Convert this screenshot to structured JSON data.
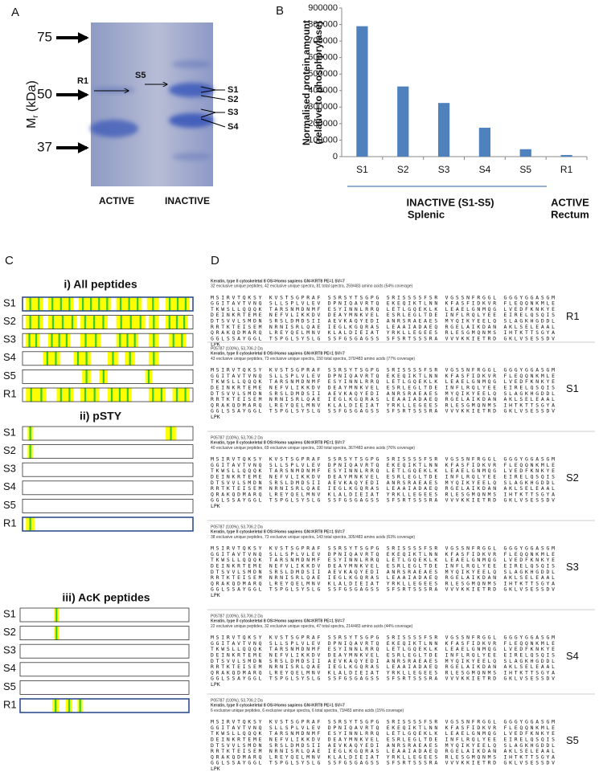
{
  "panel_a": {
    "letter": "A",
    "markers": [
      "75",
      "50",
      "37"
    ],
    "axis_label": "M",
    "axis_label_sub": "r",
    "axis_label_unit": "(kDa)",
    "band_labels": [
      "R1",
      "S5",
      "S1",
      "S2",
      "S3",
      "S4"
    ],
    "lanes": [
      "ACTIVE",
      "INACTIVE"
    ]
  },
  "chart_data": {
    "type": "bar",
    "letter": "B",
    "ylabel_lines": [
      "Normalised protein amount",
      "(relative to phosphprylase)"
    ],
    "categories": [
      "S1",
      "S2",
      "S3",
      "S4",
      "S5",
      "R1"
    ],
    "values": [
      790000,
      425000,
      325000,
      175000,
      45000,
      10000
    ],
    "color": "#4f81bd",
    "ylim": [
      0,
      900000
    ],
    "yticks": [
      0,
      100000,
      200000,
      300000,
      400000,
      500000,
      600000,
      700000,
      800000,
      900000
    ],
    "groups": [
      {
        "label": "INACTIVE (S1-S5)",
        "sublabel": "Splenic"
      },
      {
        "label": "ACTIVE",
        "sublabel": "Rectum"
      }
    ]
  },
  "panel_c": {
    "letter": "C",
    "rows": [
      "S1",
      "S2",
      "S3",
      "S4",
      "S5",
      "R1"
    ],
    "sections": [
      "i) All peptides",
      "ii) pSTY",
      "iii) AcK peptides"
    ]
  },
  "panel_d": {
    "letter": "D",
    "sequence": [
      "MSIRVTQKSY KVSTSGPRAF SSRSYTSGPG SRISSSSFSR VGSSNFRGGL GGGYGGASGM",
      "GGITAVTVNQ SLLSPLVLEV DPNIQAVRTQ EKEQIKTLNN KFASFIDKVR FLEQQNKMLE",
      "TKWSLLQQQK TARSNMDNMF ESYINNLRRQ LETLGQEKLK LEAELGNMQG LVEDFKNKYE",
      "DEINKRTEME NEFVLIKKDV DEAYMNKVEL ESRLEGLTDE INFLRQLYEE EIRELQSQIS",
      "DTSVVLSMDN SRSLDMDSII AEVKAQYEDI ANRSRAEAES MYQIKYEELQ SLAGKHGDDL",
      "RRTKTEISEM NRNISRLQAE IEGLKGQRAS LEAAIADAEQ RGELAIKDAN AKLSELEAAL",
      "QRAKQDMARQ LREYQELMNV KLALDIEIAT YRKLLEGEES RLESGMQNMS IHTKTTSGYA",
      "GGLSSAYGGL TSPGLSYSLG SSFGSGAGSS SFSRTSSSRA VVVKKIETRD GKLVSESSDV",
      "LPK"
    ],
    "blocks": [
      {
        "label": "R1",
        "lines": [
          "Keratin, type II cytoskeletal 8 OS=Homo sapiens GN=KRT8 PE=1 SV=7",
          "32 exclusive unique peptides, 42 exclusive unique spectra, 81 total spectra, 259/483 amino acids (54% coverage)"
        ]
      },
      {
        "label": "S1",
        "lines": [
          "P05787 (100%), 53,706.2 Da",
          "Keratin, type II cytoskeletal 8 OS=Homo sapiens GN=KRT8 PE=1 SV=7",
          "43 exclusive unique peptides, 73 exclusive unique spectra, 150 total spectra, 370/483 amino acids (77% coverage)"
        ]
      },
      {
        "label": "S2",
        "lines": [
          "P05787 (100%), 53,706.2 Da",
          "Keratin, type II cytoskeletal 8 OS=Homo sapiens GN=KRT8 PE=1 SV=7",
          "40 exclusive unique peptides, 69 exclusive unique spectra, 190 total spectra, 367/483 amino acids (76% coverage)"
        ]
      },
      {
        "label": "S3",
        "lines": [
          "P05787 (100%), 53,706.2 Da",
          "Keratin, type II cytoskeletal 8 OS=Homo sapiens GN=KRT8 PE=1 SV=7",
          "38 exclusive unique peptides, 73 exclusive unique spectra, 143 total spectra, 305/483 amino acids (63% coverage)"
        ]
      },
      {
        "label": "S4",
        "lines": [
          "P05787 (100%), 53,706.2 Da",
          "Keratin, type II cytoskeletal 8 OS=Homo sapiens GN=KRT8 PE=1 SV=7",
          "22 exclusive unique peptides, 32 exclusive unique spectra, 47 total spectra, 214/483 amino acids (44% coverage)"
        ]
      },
      {
        "label": "S5",
        "lines": [
          "P05787 (100%), 53,706.2 Da",
          "Keratin, type II cytoskeletal 8 OS=Homo sapiens GN=KRT8 PE=1 SV=7",
          "6 exclusive unique peptides, 6 exclusive unique spectra, 6 total spectra, 73/483 amino acids (15% coverage)"
        ]
      }
    ]
  }
}
